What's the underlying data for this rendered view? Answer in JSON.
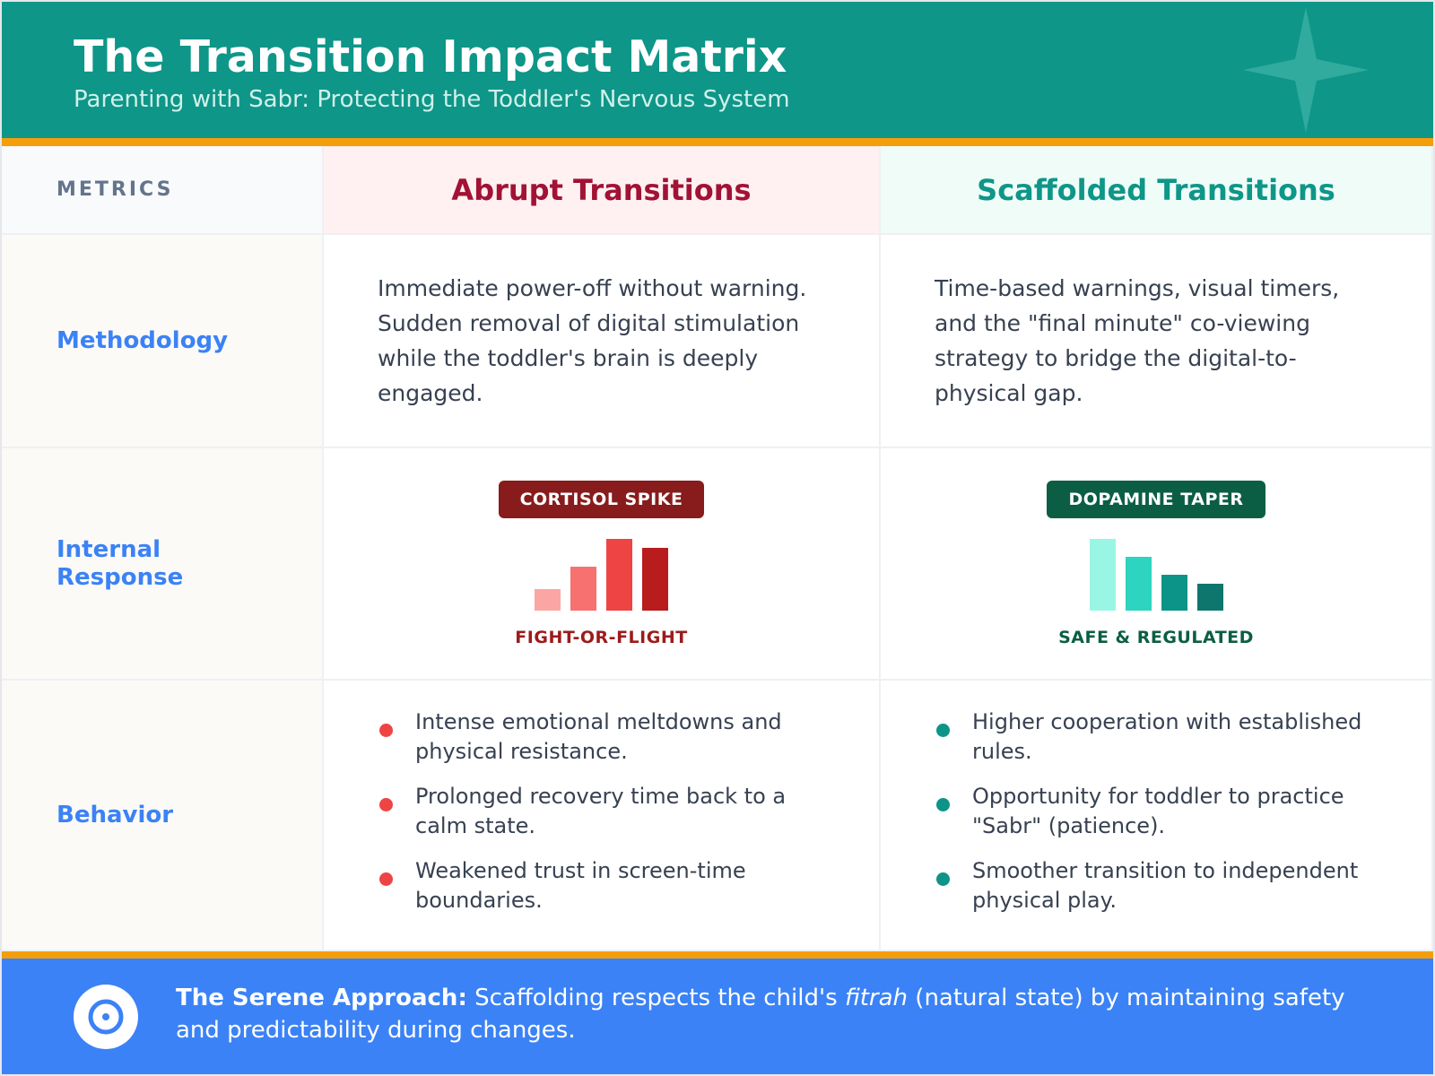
{
  "header": {
    "title": "The Transition Impact Matrix",
    "subtitle": "Parenting with Sabr: Protecting the Toddler's Nervous System"
  },
  "table": {
    "columns": [
      "METRICS",
      "Abrupt Transitions",
      "Scaffolded Transitions"
    ],
    "rows": [
      {
        "label": "Methodology",
        "abrupt": "Immediate power-off without warning. Sudden removal of digital stimulation while the toddler's brain is deeply engaged.",
        "scaffolded": "Time-based warnings, visual timers, and the \"final minute\" co-viewing strategy to bridge the digital-to-physical gap."
      },
      {
        "label": "Internal Response",
        "abrupt": {
          "badge": "CORTISOL SPIKE",
          "caption": "FIGHT-OR-FLIGHT"
        },
        "scaffolded": {
          "badge": "DOPAMINE TAPER",
          "caption": "SAFE & REGULATED"
        }
      },
      {
        "label": "Behavior",
        "abrupt": [
          "Intense emotional meltdowns and physical resistance.",
          "Prolonged recovery time back to a calm state.",
          "Weakened trust in screen-time boundaries."
        ],
        "scaffolded": [
          "Higher cooperation with established rules.",
          "Opportunity for toddler to practice \"Sabr\" (patience).",
          "Smoother transition to independent physical play."
        ]
      }
    ]
  },
  "footer": {
    "lead": "The Serene Approach:",
    "before": "Scaffolding respects the child's",
    "emphasis": "fitrah",
    "after": "(natural state) by maintaining safety and predictability during changes."
  }
}
